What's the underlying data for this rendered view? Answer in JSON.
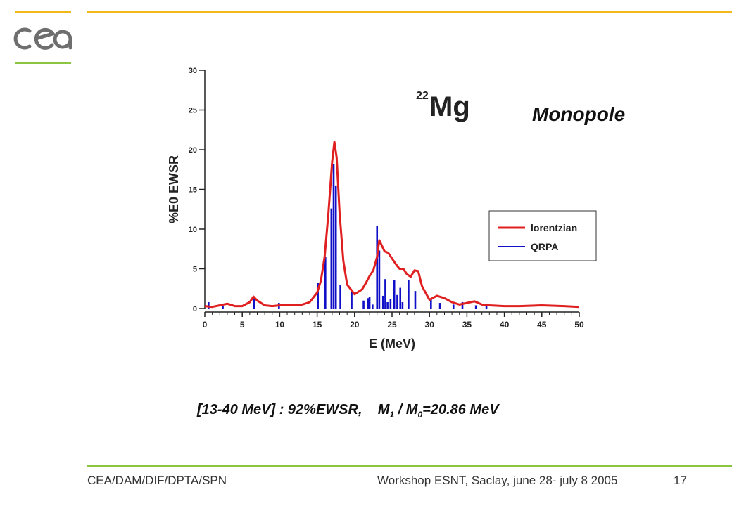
{
  "footer": {
    "left": "CEA/DAM/DIF/DPTA/SPN",
    "center": "Workshop ESNT, Saclay,  june 28- july 8 2005",
    "page_number": "17"
  },
  "logo": {
    "name": "cea-logo",
    "text": "cea"
  },
  "colors": {
    "accent_yellow": "#f2b81c",
    "accent_green": "#8cc540",
    "lorentzian": "#e02020",
    "qrpa": "#1010c8"
  },
  "chart_header": {
    "nucleus_mass": "22",
    "nucleus_symbol": "Mg",
    "title": "Monopole"
  },
  "summary": {
    "range": "[13-40 MeV] : 92%EWSR,",
    "ratio_m": "M",
    "ratio_sub1": "1",
    "ratio_slash": " / M",
    "ratio_sub0": "0",
    "ratio_value": "=20.86 MeV"
  },
  "chart_data": {
    "type": "line",
    "xlabel": "E (MeV)",
    "ylabel": "%E0 EWSR",
    "xlim": [
      0,
      50
    ],
    "ylim": [
      0,
      30
    ],
    "xticks": [
      0,
      5,
      10,
      15,
      20,
      25,
      30,
      35,
      40,
      45,
      50
    ],
    "yticks": [
      0,
      5,
      10,
      15,
      20,
      25,
      30
    ],
    "legend": {
      "placement": "right",
      "entries": [
        "lorentzian",
        "QRPA"
      ]
    },
    "series": [
      {
        "name": "lorentzian",
        "style": "line",
        "color": "#e02020",
        "x": [
          0,
          1,
          2,
          3,
          4,
          5,
          6,
          6.5,
          7,
          8,
          9,
          10,
          11,
          12,
          13,
          14,
          15,
          15.5,
          16,
          16.5,
          17,
          17.3,
          17.6,
          18,
          18.5,
          19,
          20,
          21,
          21.5,
          22,
          22.5,
          23,
          23.3,
          23.6,
          24,
          24.5,
          25,
          25.5,
          26,
          26.5,
          27,
          27.5,
          28,
          28.5,
          29,
          30,
          31,
          32,
          33,
          34,
          35,
          36,
          37,
          38,
          40,
          42,
          45,
          48,
          50
        ],
        "y": [
          0.3,
          0.2,
          0.4,
          0.6,
          0.3,
          0.3,
          0.8,
          1.5,
          1.0,
          0.4,
          0.3,
          0.4,
          0.4,
          0.4,
          0.5,
          0.8,
          2.0,
          3.5,
          6.5,
          12.0,
          18.5,
          21.0,
          19.0,
          12.0,
          6.0,
          3.0,
          1.8,
          2.4,
          3.2,
          4.1,
          4.8,
          6.5,
          8.6,
          8.0,
          7.2,
          7.0,
          6.3,
          5.6,
          5.0,
          5.0,
          4.3,
          4.0,
          4.8,
          4.7,
          2.8,
          1.1,
          1.6,
          1.3,
          0.8,
          0.5,
          0.7,
          0.9,
          0.5,
          0.4,
          0.3,
          0.3,
          0.4,
          0.3,
          0.2
        ]
      },
      {
        "name": "QRPA",
        "style": "bars",
        "color": "#1010c8",
        "x": [
          0.5,
          2.4,
          6.6,
          9.9,
          15.1,
          16.1,
          16.9,
          17.2,
          17.5,
          18.1,
          19.6,
          21.2,
          21.8,
          22.0,
          22.4,
          23.0,
          23.3,
          23.8,
          24.1,
          24.4,
          24.8,
          25.3,
          25.7,
          26.1,
          26.4,
          27.2,
          28.1,
          30.2,
          31.4,
          33.2,
          34.4,
          36.2,
          37.6
        ],
        "y": [
          0.8,
          0.4,
          1.4,
          0.7,
          3.2,
          6.5,
          12.6,
          18.2,
          15.5,
          3.0,
          2.2,
          1.0,
          1.3,
          1.5,
          0.5,
          10.4,
          7.3,
          1.6,
          3.7,
          0.8,
          1.2,
          3.6,
          1.7,
          2.6,
          0.8,
          3.6,
          2.2,
          1.2,
          0.7,
          0.5,
          0.8,
          0.4,
          0.3
        ]
      }
    ]
  }
}
